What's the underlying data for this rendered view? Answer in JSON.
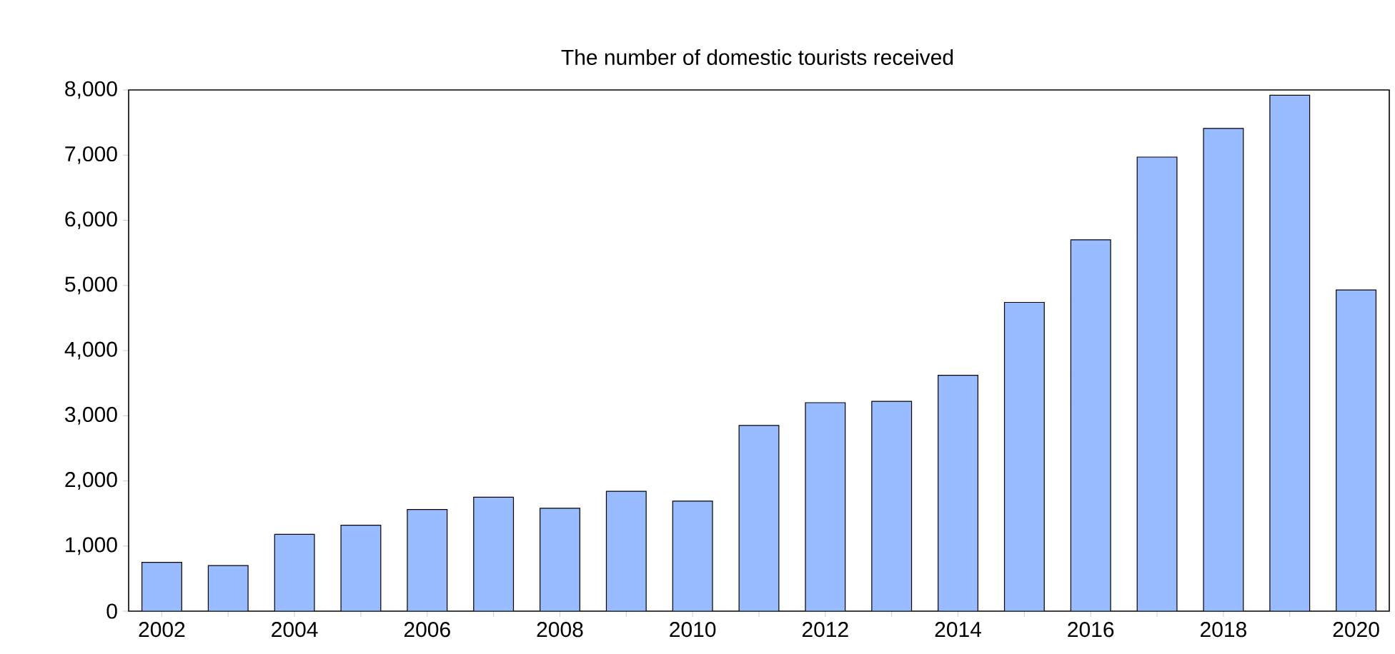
{
  "chart_data": {
    "type": "bar",
    "title": "The number of domestic tourists received",
    "categories": [
      "2002",
      null,
      "2004",
      null,
      "2006",
      null,
      "2008",
      null,
      "2010",
      null,
      "2012",
      null,
      "2014",
      null,
      "2016",
      null,
      "2018",
      null,
      "2020"
    ],
    "values": [
      750,
      700,
      1180,
      1320,
      1560,
      1750,
      1580,
      1840,
      1690,
      2850,
      3200,
      3220,
      3620,
      4740,
      5700,
      6970,
      7410,
      7920,
      4930
    ],
    "color": "#99bbff",
    "ylim": [
      0,
      8000
    ],
    "yticks": [
      {
        "value": 0,
        "label": "0"
      },
      {
        "value": 1000,
        "label": "1,000"
      },
      {
        "value": 2000,
        "label": "2,000"
      },
      {
        "value": 3000,
        "label": "3,000"
      },
      {
        "value": 4000,
        "label": "4,000"
      },
      {
        "value": 5000,
        "label": "5,000"
      },
      {
        "value": 6000,
        "label": "6,000"
      },
      {
        "value": 7000,
        "label": "7,000"
      },
      {
        "value": 8000,
        "label": "8,000"
      }
    ],
    "grid": false
  }
}
